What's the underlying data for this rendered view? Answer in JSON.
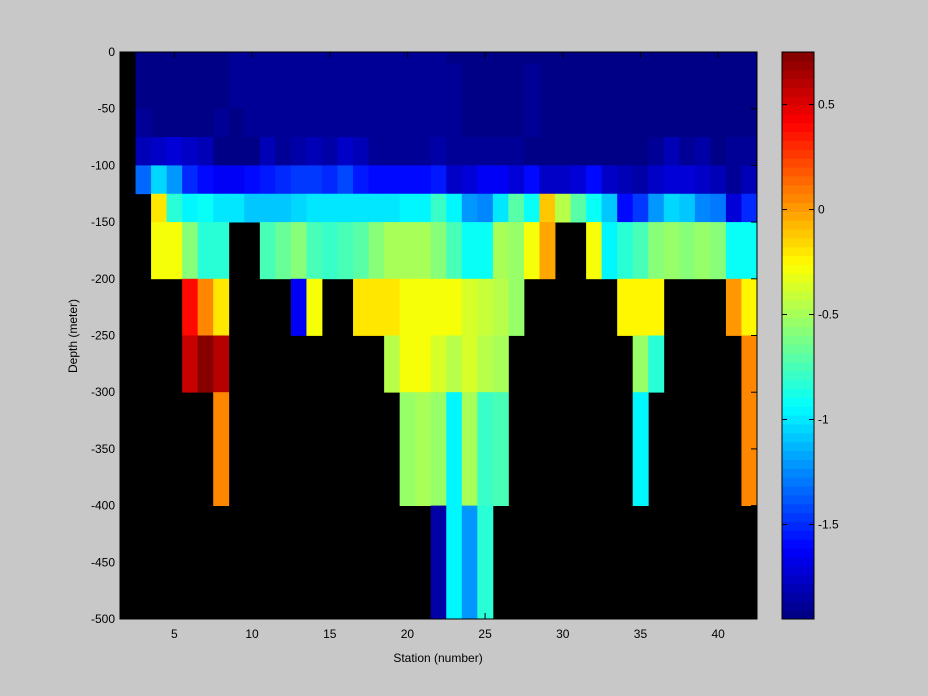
{
  "figure": {
    "background": "#c8c8c8",
    "plot_background": "#000000"
  },
  "chart_data": {
    "type": "heatmap",
    "title": "",
    "xlabel": "Station (number)",
    "ylabel": "Depth (meter)",
    "xlim": [
      1.5,
      42.5
    ],
    "ylim": [
      -500,
      0
    ],
    "xticks": [
      5,
      10,
      15,
      20,
      25,
      30,
      35,
      40
    ],
    "xtick_labels": [
      "5",
      "10",
      "15",
      "20",
      "25",
      "30",
      "35",
      "40"
    ],
    "yticks": [
      0,
      -50,
      -100,
      -150,
      -200,
      -250,
      -300,
      -350,
      -400,
      -450,
      -500
    ],
    "ytick_labels": [
      "0",
      "-50",
      "-100",
      "-150",
      "-200",
      "-250",
      "-300",
      "-350",
      "-400",
      "-450",
      "-500"
    ],
    "grid": false,
    "missing_color": "#000000",
    "stations": [
      2,
      3,
      4,
      5,
      6,
      7,
      8,
      9,
      10,
      11,
      12,
      13,
      14,
      15,
      16,
      17,
      18,
      19,
      20,
      21,
      22,
      23,
      24,
      25,
      26,
      27,
      28,
      29,
      30,
      31,
      32,
      33,
      34,
      35,
      36,
      37,
      38,
      39,
      40,
      41,
      42
    ],
    "depth_bins": [
      {
        "top": 0,
        "bottom": -10
      },
      {
        "top": -10,
        "bottom": -50
      },
      {
        "top": -50,
        "bottom": -75
      },
      {
        "top": -75,
        "bottom": -100
      },
      {
        "top": -100,
        "bottom": -125
      },
      {
        "top": -125,
        "bottom": -150
      },
      {
        "top": -150,
        "bottom": -200
      },
      {
        "top": -200,
        "bottom": -250
      },
      {
        "top": -250,
        "bottom": -300
      },
      {
        "top": -300,
        "bottom": -400
      },
      {
        "top": -400,
        "bottom": -500
      }
    ],
    "values": [
      [
        null,
        -1.93,
        -1.93,
        -1.93,
        -1.93,
        -1.93,
        -1.93,
        -1.9,
        -1.9,
        -1.9,
        -1.9,
        -1.9,
        -1.9,
        -1.9,
        -1.9,
        -1.9,
        -1.9,
        -1.9,
        -1.9,
        -1.9,
        -1.9,
        -1.93,
        -1.93,
        -1.93,
        -1.93,
        -1.93,
        -1.93,
        -1.93,
        -1.93,
        -1.93,
        -1.93,
        -1.93,
        -1.93,
        -1.93,
        -1.93,
        -1.93,
        -1.93,
        -1.93,
        -1.93,
        -1.93,
        -1.93
      ],
      [
        null,
        -1.93,
        -1.93,
        -1.93,
        -1.93,
        -1.93,
        -1.93,
        -1.9,
        -1.9,
        -1.9,
        -1.9,
        -1.9,
        -1.9,
        -1.9,
        -1.9,
        -1.9,
        -1.9,
        -1.9,
        -1.9,
        -1.9,
        -1.9,
        -1.9,
        -1.93,
        -1.93,
        -1.93,
        -1.93,
        -1.9,
        -1.93,
        -1.93,
        -1.93,
        -1.93,
        -1.93,
        -1.93,
        -1.93,
        -1.93,
        -1.93,
        -1.93,
        -1.93,
        -1.93,
        -1.93,
        -1.93
      ],
      [
        null,
        -1.9,
        -1.93,
        -1.93,
        -1.93,
        -1.93,
        -1.9,
        -1.93,
        -1.9,
        -1.9,
        -1.9,
        -1.9,
        -1.9,
        -1.9,
        -1.9,
        -1.9,
        -1.9,
        -1.9,
        -1.9,
        -1.9,
        -1.9,
        -1.9,
        -1.93,
        -1.93,
        -1.93,
        -1.93,
        -1.9,
        -1.93,
        -1.93,
        -1.93,
        -1.93,
        -1.93,
        -1.93,
        -1.93,
        -1.93,
        -1.93,
        -1.93,
        -1.93,
        -1.93,
        -1.93,
        -1.93
      ],
      [
        null,
        -1.8,
        -1.78,
        -1.7,
        -1.75,
        -1.8,
        -1.93,
        -1.93,
        -1.93,
        -1.8,
        -1.9,
        -1.85,
        -1.8,
        -1.85,
        -1.75,
        -1.8,
        -1.9,
        -1.9,
        -1.9,
        -1.9,
        -1.85,
        -1.9,
        -1.9,
        -1.9,
        -1.9,
        -1.9,
        -1.93,
        -1.95,
        -1.95,
        -1.95,
        -1.95,
        -1.95,
        -1.93,
        -1.93,
        -1.9,
        -1.8,
        -1.9,
        -1.85,
        -1.93,
        -1.9,
        -1.9
      ],
      [
        null,
        -1.35,
        -1.05,
        -1.2,
        -1.5,
        -1.6,
        -1.65,
        -1.65,
        -1.6,
        -1.55,
        -1.5,
        -1.48,
        -1.45,
        -1.5,
        -1.42,
        -1.55,
        -1.6,
        -1.6,
        -1.6,
        -1.6,
        -1.55,
        -1.75,
        -1.7,
        -1.65,
        -1.65,
        -1.7,
        -1.6,
        -1.75,
        -1.75,
        -1.7,
        -1.6,
        -1.75,
        -1.8,
        -1.85,
        -1.75,
        -1.7,
        -1.7,
        -1.75,
        -1.8,
        -1.9,
        -1.8
      ],
      [
        null,
        null,
        -0.2,
        -0.85,
        -0.95,
        -0.9,
        -1.0,
        -1.0,
        -1.1,
        -1.1,
        -1.1,
        -1.05,
        -1.0,
        -1.0,
        -1.0,
        -1.0,
        -1.0,
        -1.0,
        -0.95,
        -0.95,
        -0.8,
        -0.95,
        -1.2,
        -1.25,
        -1.0,
        -0.7,
        -0.9,
        -0.1,
        -0.45,
        -0.7,
        -0.9,
        -1.1,
        -1.6,
        -1.45,
        -1.2,
        -1.05,
        -1.1,
        -1.25,
        -1.3,
        -1.7,
        -1.5
      ],
      [
        null,
        null,
        -0.3,
        -0.3,
        -0.6,
        -0.85,
        -0.85,
        null,
        null,
        -0.75,
        -0.65,
        -0.6,
        -0.75,
        -0.8,
        -0.75,
        -0.7,
        -0.6,
        -0.5,
        -0.5,
        -0.5,
        -0.6,
        -0.75,
        -0.9,
        -0.9,
        -0.5,
        -0.55,
        -0.3,
        -0.05,
        null,
        null,
        -0.3,
        -0.95,
        -0.85,
        -0.75,
        -0.6,
        -0.55,
        -0.6,
        -0.55,
        -0.6,
        -0.9,
        -0.9
      ],
      [
        null,
        null,
        null,
        null,
        0.4,
        0.05,
        -0.2,
        null,
        null,
        null,
        null,
        -1.65,
        -0.3,
        null,
        null,
        -0.2,
        -0.2,
        -0.2,
        -0.3,
        -0.3,
        -0.3,
        -0.3,
        -0.35,
        -0.4,
        -0.45,
        -0.55,
        null,
        null,
        null,
        null,
        null,
        null,
        -0.25,
        -0.25,
        -0.25,
        null,
        null,
        null,
        null,
        0.0,
        -0.25
      ],
      [
        null,
        null,
        null,
        null,
        0.55,
        0.72,
        0.6,
        null,
        null,
        null,
        null,
        null,
        null,
        null,
        null,
        null,
        null,
        -0.45,
        -0.3,
        -0.3,
        -0.35,
        -0.45,
        -0.35,
        -0.45,
        -0.5,
        null,
        null,
        null,
        null,
        null,
        null,
        null,
        null,
        -0.55,
        -0.85,
        null,
        null,
        null,
        null,
        null,
        0.05
      ],
      [
        null,
        null,
        null,
        null,
        null,
        null,
        0.05,
        null,
        null,
        null,
        null,
        null,
        null,
        null,
        null,
        null,
        null,
        null,
        -0.55,
        -0.5,
        -0.55,
        -0.95,
        -0.5,
        -0.8,
        -0.75,
        null,
        null,
        null,
        null,
        null,
        null,
        null,
        null,
        -0.95,
        null,
        null,
        null,
        null,
        null,
        null,
        0.05
      ],
      [
        null,
        null,
        null,
        null,
        null,
        null,
        null,
        null,
        null,
        null,
        null,
        null,
        null,
        null,
        null,
        null,
        null,
        null,
        null,
        null,
        -1.85,
        -0.95,
        -1.2,
        -0.85,
        null,
        null,
        null,
        null,
        null,
        null,
        null,
        null,
        null,
        null,
        null,
        null,
        null,
        null,
        null,
        null,
        null
      ]
    ],
    "colorbar": {
      "colormap": "jet",
      "range": [
        -1.95,
        0.75
      ],
      "ticks": [
        0.5,
        0,
        -0.5,
        -1,
        -1.5
      ],
      "tick_labels": [
        "0.5",
        "0",
        "-0.5",
        "-1",
        "-1.5"
      ]
    }
  }
}
